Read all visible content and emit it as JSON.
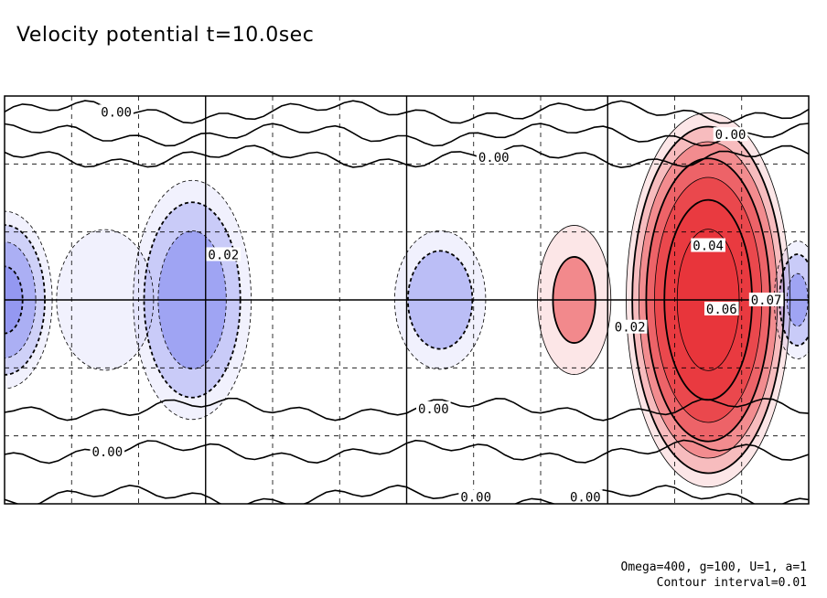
{
  "chart_data": {
    "type": "heatmap",
    "title": "Velocity potential t=10.0sec",
    "xlabel": "",
    "ylabel": "",
    "x_range": [
      0,
      360
    ],
    "y_range": [
      -90,
      90
    ],
    "major_grid_x": [
      90,
      180,
      270
    ],
    "minor_grid_x": [
      60,
      120,
      150,
      210,
      240,
      300,
      330,
      30
    ],
    "major_grid_y": [
      0
    ],
    "minor_grid_y": [
      -60,
      -30,
      30,
      60
    ],
    "grid": true,
    "contour_interval": 0.01,
    "positive_color": "#e8343a",
    "negative_color": "#8a8ff0",
    "series": [
      {
        "sign": "positive",
        "centers": [
          {
            "x": 315,
            "y": 0,
            "amplitude": 0.075,
            "rx": 20,
            "ry": 45
          },
          {
            "x": 255,
            "y": 0,
            "amplitude": 0.02,
            "rx": 10,
            "ry": 20
          }
        ]
      },
      {
        "sign": "negative",
        "centers": [
          {
            "x": 0,
            "y": 0,
            "amplitude": -0.04,
            "rx": 12,
            "ry": 22
          },
          {
            "x": 84,
            "y": 0,
            "amplitude": -0.035,
            "rx": 15,
            "ry": 30
          },
          {
            "x": 45,
            "y": 0,
            "amplitude": -0.015,
            "rx": 14,
            "ry": 20
          },
          {
            "x": 195,
            "y": 0,
            "amplitude": -0.025,
            "rx": 12,
            "ry": 18
          },
          {
            "x": 355,
            "y": 0,
            "amplitude": -0.03,
            "rx": 6,
            "ry": 15
          }
        ]
      }
    ],
    "contour_labels": [
      {
        "text": "0.00",
        "x": 50,
        "y": 83
      },
      {
        "text": "0.00",
        "x": 325,
        "y": 73
      },
      {
        "text": "0.00",
        "x": 219,
        "y": 63
      },
      {
        "text": "0.00",
        "x": 192,
        "y": -48
      },
      {
        "text": "0.00",
        "x": 46,
        "y": -67
      },
      {
        "text": "0.00",
        "x": 211,
        "y": -87
      },
      {
        "text": "0.00",
        "x": 260,
        "y": -87
      },
      {
        "text": "0.02",
        "x": 98,
        "y": 20
      },
      {
        "text": "0.04",
        "x": 315,
        "y": 24
      },
      {
        "text": "0.06",
        "x": 321,
        "y": -4
      },
      {
        "text": "0.02",
        "x": 280,
        "y": -12
      },
      {
        "text": "0.07",
        "x": 341,
        "y": 0
      }
    ]
  },
  "footnote": {
    "params": "Omega=400, g=100, U=1, a=1",
    "interval": "Contour interval=0.01"
  }
}
